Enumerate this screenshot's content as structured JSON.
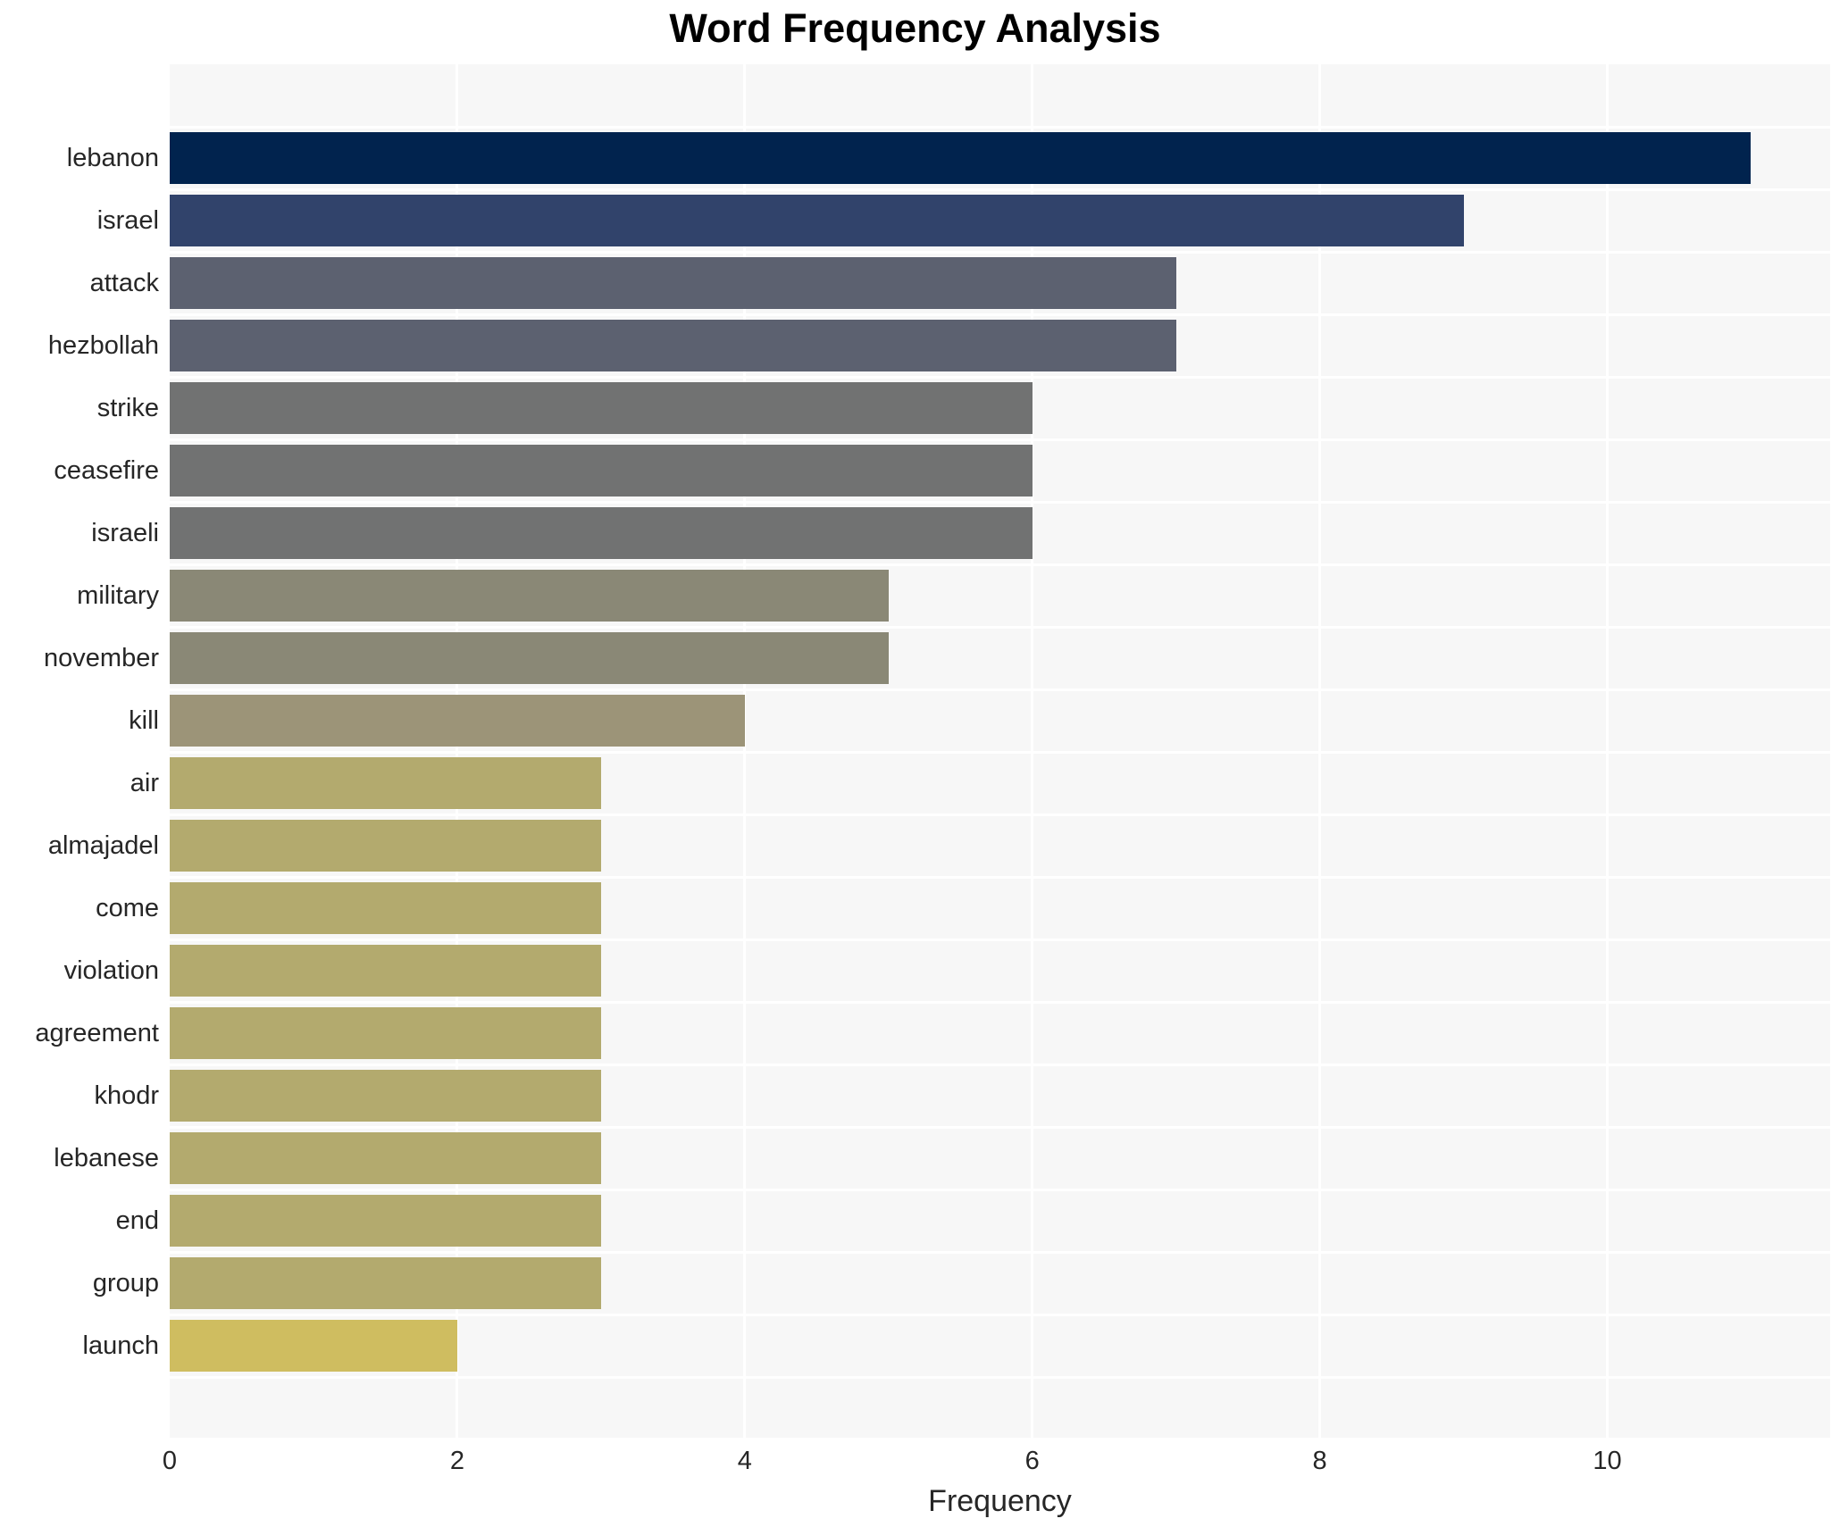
{
  "title": "Word Frequency Analysis",
  "chart_data": {
    "type": "bar",
    "orientation": "horizontal",
    "title": "Word Frequency Analysis",
    "xlabel": "Frequency",
    "ylabel": "",
    "categories": [
      "lebanon",
      "israel",
      "attack",
      "hezbollah",
      "strike",
      "ceasefire",
      "israeli",
      "military",
      "november",
      "kill",
      "air",
      "almajadel",
      "come",
      "violation",
      "agreement",
      "khodr",
      "lebanese",
      "end",
      "group",
      "launch"
    ],
    "values": [
      11,
      9,
      7,
      7,
      6,
      6,
      6,
      5,
      5,
      4,
      3,
      3,
      3,
      3,
      3,
      3,
      3,
      3,
      3,
      2
    ],
    "bar_colors": [
      "#01234e",
      "#31436b",
      "#5c6170",
      "#5c6170",
      "#717272",
      "#717272",
      "#717272",
      "#8a8876",
      "#8a8876",
      "#9c9478",
      "#b3aa6e",
      "#b3aa6e",
      "#b3aa6e",
      "#b3aa6e",
      "#b3aa6e",
      "#b3aa6e",
      "#b3aa6e",
      "#b3aa6e",
      "#b3aa6e",
      "#cfbd60"
    ],
    "xticks": [
      0,
      2,
      4,
      6,
      8,
      10
    ],
    "xlim": [
      0,
      11.55
    ],
    "grid": true,
    "legend": false,
    "plot_bg_color": "#f7f7f7",
    "grid_color": "#ffffff"
  }
}
